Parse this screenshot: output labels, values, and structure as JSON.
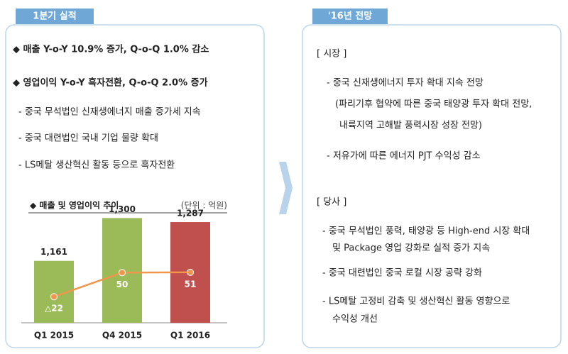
{
  "left": {
    "title": "1분기 실적",
    "bullets": [
      "◆ 매출 Y-o-Y 10.9% 증가, Q-o-Q 1.0% 감소",
      "◆ 영업이익 Y-o-Y 흑자전환, Q-o-Q 2.0% 증가",
      "- 중국 무석법인 신재생에너지 매출 증가세 지속",
      "- 중국 대련법인 국내 기업 물량 확대",
      "- LS메탈 생산혁신 활동 등으로 흑자전환"
    ]
  },
  "right": {
    "title": "'16년 전망",
    "lines": [
      "[ 시장 ]",
      "- 중국 신재생에너지 투자 확대 지속 전망",
      "(파리기후 협약에 따른 중국 태양광 투자 확대 전망,",
      "내륙지역 고해발 풍력시장 성장 전망)",
      "- 저유가에 따른 에너지 PJT 수익성 감소",
      "[ 당사 ]",
      "- 중국 무석법인 풍력, 태양광 등 High-end 시장 확대",
      "및 Package 영업 강화로 실적 증가 지속",
      "- 중국 대련법인 중국 로컬 시장 공략 강화",
      "- LS메탈 고정비 감축 및 생산혁신 활동 영향으로",
      "수익성 개선"
    ]
  },
  "chart_data": {
    "type": "bar",
    "title": "◆ 매출 및 영업이익 추이",
    "unit": "(단위 : 억원)",
    "categories": [
      "Q1 2015",
      "Q4 2015",
      "Q1 2016"
    ],
    "ylim": [
      960,
      1340
    ],
    "y2lim": [
      -100,
      250
    ],
    "series": [
      {
        "type": "bar",
        "colors": [
          "#9bbb59",
          "#9bbb59",
          "#c0504d"
        ],
        "values": [
          1161,
          1300,
          1287
        ],
        "value_labels": [
          "1,161",
          "1,300",
          "1,287"
        ]
      },
      {
        "type": "line",
        "axis": "y2",
        "color": "#f0964a",
        "values": [
          -22,
          50,
          51
        ],
        "value_labels": [
          "△22",
          "50",
          "51"
        ]
      }
    ]
  }
}
